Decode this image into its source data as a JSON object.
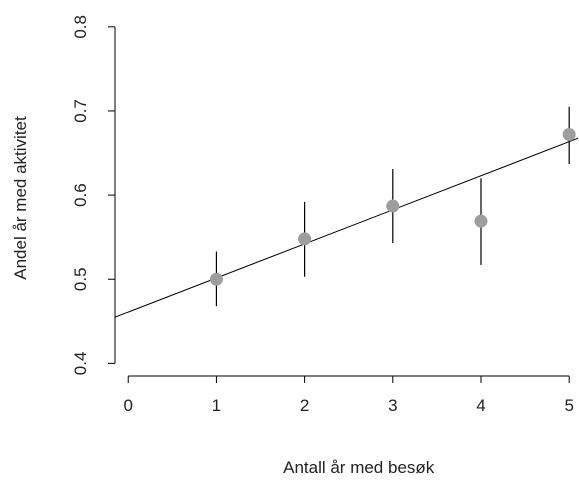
{
  "chart_data": {
    "type": "scatter",
    "xlabel": "Antall år med besøk",
    "ylabel": "Andel år med aktivitet",
    "xlim": [
      -0.15,
      5.1
    ],
    "ylim": [
      0.385,
      0.82
    ],
    "xticks": [
      0,
      1,
      2,
      3,
      4,
      5
    ],
    "xtick_labels": [
      "0",
      "1",
      "2",
      "3",
      "4",
      "5"
    ],
    "yticks": [
      0.4,
      0.5,
      0.6,
      0.7,
      0.8
    ],
    "ytick_labels": [
      "0.4",
      "0.5",
      "0.6",
      "0.7",
      "0.8"
    ],
    "grid": false,
    "points": [
      {
        "x": 1,
        "y": 0.5,
        "lower": 0.468,
        "upper": 0.533
      },
      {
        "x": 2,
        "y": 0.548,
        "lower": 0.503,
        "upper": 0.592
      },
      {
        "x": 3,
        "y": 0.587,
        "lower": 0.543,
        "upper": 0.631
      },
      {
        "x": 4,
        "y": 0.569,
        "lower": 0.517,
        "upper": 0.62
      },
      {
        "x": 5,
        "y": 0.672,
        "lower": 0.637,
        "upper": 0.705
      }
    ],
    "fit_line": {
      "intercept": 0.461,
      "slope": 0.0405
    },
    "colors": {
      "point": "#9e9e9e",
      "line": "#000000",
      "axis": "#000000"
    }
  }
}
